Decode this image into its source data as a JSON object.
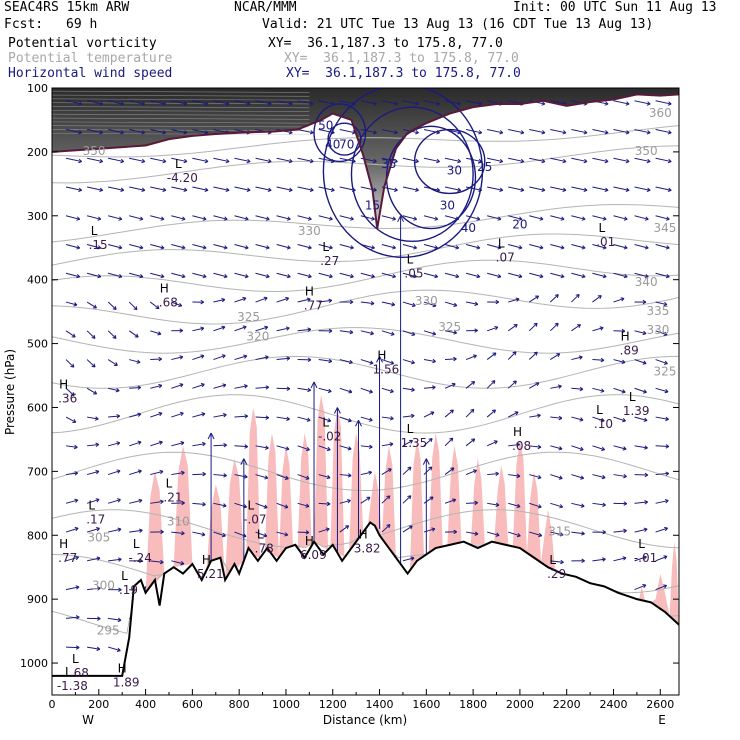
{
  "header": {
    "model": "SEAC4RS 15km ARW",
    "center": "NCAR/MMM",
    "init": "Init: 00 UTC Sun 11 Aug 13",
    "fcst_label": "Fcst:",
    "fcst_value": "69 h",
    "valid": "Valid: 21 UTC Tue 13 Aug 13 (16 CDT Tue 13 Aug 13)",
    "fields": [
      {
        "name": "Potential vorticity",
        "xy": "XY=  36.1,187.3 to 175.8, 77.0",
        "color": "#000000"
      },
      {
        "name": "Potential temperature",
        "xy": "XY=  36.1,187.3 to 175.8, 77.0",
        "color": "#a8a8a8"
      },
      {
        "name": "Horizontal wind speed",
        "xy": "XY=  36.1,187.3 to 175.8, 77.0",
        "color": "#1a1a80"
      }
    ]
  },
  "chart_data": {
    "type": "cross-section",
    "xlabel": "Distance (km)",
    "ylabel": "Pressure (hPa)",
    "xlim": [
      0,
      2680
    ],
    "ylim": [
      1050,
      100
    ],
    "x_ticks": [
      0,
      200,
      400,
      600,
      800,
      1000,
      1200,
      1400,
      1600,
      1800,
      2000,
      2200,
      2400,
      2600
    ],
    "y_ticks": [
      100,
      200,
      300,
      400,
      500,
      600,
      700,
      800,
      900,
      1000
    ],
    "x_end_labels": {
      "left": "W",
      "right": "E"
    },
    "terrain_pressure": [
      [
        0,
        1020
      ],
      [
        300,
        1020
      ],
      [
        330,
        960
      ],
      [
        350,
        880
      ],
      [
        380,
        870
      ],
      [
        400,
        890
      ],
      [
        440,
        870
      ],
      [
        460,
        910
      ],
      [
        480,
        860
      ],
      [
        520,
        850
      ],
      [
        560,
        860
      ],
      [
        600,
        845
      ],
      [
        640,
        870
      ],
      [
        680,
        840
      ],
      [
        720,
        835
      ],
      [
        740,
        870
      ],
      [
        780,
        845
      ],
      [
        800,
        860
      ],
      [
        840,
        820
      ],
      [
        880,
        840
      ],
      [
        920,
        820
      ],
      [
        960,
        840
      ],
      [
        1000,
        820
      ],
      [
        1040,
        815
      ],
      [
        1080,
        835
      ],
      [
        1120,
        810
      ],
      [
        1160,
        830
      ],
      [
        1200,
        815
      ],
      [
        1240,
        840
      ],
      [
        1280,
        820
      ],
      [
        1320,
        800
      ],
      [
        1360,
        780
      ],
      [
        1380,
        785
      ],
      [
        1400,
        800
      ],
      [
        1440,
        820
      ],
      [
        1480,
        840
      ],
      [
        1520,
        860
      ],
      [
        1560,
        840
      ],
      [
        1600,
        830
      ],
      [
        1640,
        820
      ],
      [
        1700,
        815
      ],
      [
        1760,
        810
      ],
      [
        1820,
        820
      ],
      [
        1880,
        810
      ],
      [
        1940,
        815
      ],
      [
        2000,
        820
      ],
      [
        2060,
        835
      ],
      [
        2120,
        850
      ],
      [
        2180,
        860
      ],
      [
        2240,
        865
      ],
      [
        2300,
        875
      ],
      [
        2360,
        880
      ],
      [
        2420,
        890
      ],
      [
        2500,
        900
      ],
      [
        2560,
        905
      ],
      [
        2620,
        920
      ],
      [
        2680,
        940
      ]
    ],
    "pv_tropopause": [
      [
        0,
        200
      ],
      [
        200,
        195
      ],
      [
        400,
        190
      ],
      [
        500,
        180
      ],
      [
        600,
        175
      ],
      [
        700,
        172
      ],
      [
        800,
        170
      ],
      [
        950,
        168
      ],
      [
        1050,
        165
      ],
      [
        1150,
        150
      ],
      [
        1200,
        140
      ],
      [
        1280,
        150
      ],
      [
        1330,
        205
      ],
      [
        1370,
        260
      ],
      [
        1390,
        320
      ],
      [
        1420,
        255
      ],
      [
        1470,
        195
      ],
      [
        1520,
        170
      ],
      [
        1600,
        155
      ],
      [
        1700,
        140
      ],
      [
        1800,
        130
      ],
      [
        1900,
        125
      ],
      [
        2000,
        125
      ],
      [
        2100,
        120
      ],
      [
        2200,
        128
      ],
      [
        2300,
        122
      ],
      [
        2400,
        118
      ],
      [
        2500,
        110
      ],
      [
        2600,
        112
      ],
      [
        2680,
        110
      ]
    ],
    "isentrope_labels": [
      {
        "x": 1100,
        "p": 330,
        "label": "330"
      },
      {
        "x": 840,
        "p": 465,
        "label": "325"
      },
      {
        "x": 880,
        "p": 495,
        "label": "320"
      },
      {
        "x": 1600,
        "p": 440,
        "label": "330"
      },
      {
        "x": 1700,
        "p": 480,
        "label": "325"
      },
      {
        "x": 2540,
        "p": 410,
        "label": "340"
      },
      {
        "x": 2590,
        "p": 455,
        "label": "335"
      },
      {
        "x": 2590,
        "p": 485,
        "label": "330"
      },
      {
        "x": 2620,
        "p": 550,
        "label": "325"
      },
      {
        "x": 2620,
        "p": 325,
        "label": "345"
      },
      {
        "x": 2540,
        "p": 205,
        "label": "350"
      },
      {
        "x": 2600,
        "p": 145,
        "label": "360"
      },
      {
        "x": 200,
        "p": 810,
        "label": "305"
      },
      {
        "x": 220,
        "p": 885,
        "label": "300"
      },
      {
        "x": 240,
        "p": 955,
        "label": "295"
      },
      {
        "x": 540,
        "p": 785,
        "label": "310"
      },
      {
        "x": 180,
        "p": 205,
        "label": "350"
      },
      {
        "x": 2170,
        "p": 800,
        "label": "315"
      }
    ],
    "wind_speed_labels": [
      {
        "x": 1170,
        "p": 165,
        "label": "50"
      },
      {
        "x": 1200,
        "p": 195,
        "label": "40"
      },
      {
        "x": 1260,
        "p": 195,
        "label": "70"
      },
      {
        "x": 1440,
        "p": 225,
        "label": "35"
      },
      {
        "x": 1720,
        "p": 235,
        "label": "30"
      },
      {
        "x": 1850,
        "p": 230,
        "label": "25"
      },
      {
        "x": 1690,
        "p": 290,
        "label": "30"
      },
      {
        "x": 1780,
        "p": 325,
        "label": "40"
      },
      {
        "x": 2000,
        "p": 320,
        "label": "20"
      },
      {
        "x": 1370,
        "p": 290,
        "label": "15"
      }
    ],
    "extrema": [
      {
        "x": 540,
        "p": 225,
        "type": "L",
        "value": "-4.20"
      },
      {
        "x": 180,
        "p": 330,
        "type": "L",
        "value": ".15"
      },
      {
        "x": 480,
        "p": 420,
        "type": "H",
        "value": ".68"
      },
      {
        "x": 1170,
        "p": 355,
        "type": "L",
        "value": ".27"
      },
      {
        "x": 1100,
        "p": 425,
        "type": "H",
        "value": ".77"
      },
      {
        "x": 1530,
        "p": 375,
        "type": "L",
        "value": ".05"
      },
      {
        "x": 1920,
        "p": 350,
        "type": "L",
        "value": ".07"
      },
      {
        "x": 2350,
        "p": 325,
        "type": "L",
        "value": ".01"
      },
      {
        "x": 2450,
        "p": 495,
        "type": "H",
        "value": ".89"
      },
      {
        "x": 2480,
        "p": 590,
        "type": "L",
        "value": "1.39"
      },
      {
        "x": 2340,
        "p": 610,
        "type": "L",
        "value": ".10"
      },
      {
        "x": 1410,
        "p": 525,
        "type": "H",
        "value": "1.56"
      },
      {
        "x": 1530,
        "p": 640,
        "type": "L",
        "value": "1.35"
      },
      {
        "x": 1990,
        "p": 645,
        "type": "H",
        "value": ".08"
      },
      {
        "x": 1170,
        "p": 630,
        "type": "L",
        "value": "-.02"
      },
      {
        "x": 50,
        "p": 570,
        "type": "H",
        "value": ".36"
      },
      {
        "x": 500,
        "p": 725,
        "type": "L",
        "value": ".21"
      },
      {
        "x": 170,
        "p": 760,
        "type": "L",
        "value": ".17"
      },
      {
        "x": 850,
        "p": 760,
        "type": "L",
        "value": "-.07"
      },
      {
        "x": 890,
        "p": 805,
        "type": "L",
        "value": ".78"
      },
      {
        "x": 660,
        "p": 845,
        "type": "H",
        "value": "5.21"
      },
      {
        "x": 1100,
        "p": 815,
        "type": "H",
        "value": "6.09"
      },
      {
        "x": 1330,
        "p": 805,
        "type": "H",
        "value": "3.82"
      },
      {
        "x": 360,
        "p": 820,
        "type": "L",
        "value": "-.24"
      },
      {
        "x": 50,
        "p": 820,
        "type": "H",
        "value": ".77"
      },
      {
        "x": 310,
        "p": 870,
        "type": "L",
        "value": ".19"
      },
      {
        "x": 2140,
        "p": 845,
        "type": "L",
        "value": ".29"
      },
      {
        "x": 2520,
        "p": 820,
        "type": "L",
        "value": "-.01"
      },
      {
        "x": 100,
        "p": 1000,
        "type": "L",
        "value": ".68"
      },
      {
        "x": 300,
        "p": 1015,
        "type": "H",
        "value": "1.89"
      },
      {
        "x": 70,
        "p": 1020,
        "type": "L",
        "value": "-1.38"
      }
    ]
  },
  "colors": {
    "pv_shade_dark": "#404040",
    "pv_positive_pink": "#f9bcbc",
    "tropopause": "#5a1a3a",
    "wind_contour": "#1a1a80",
    "isentrope": "#b4b4b4",
    "terrain": "#000000"
  }
}
